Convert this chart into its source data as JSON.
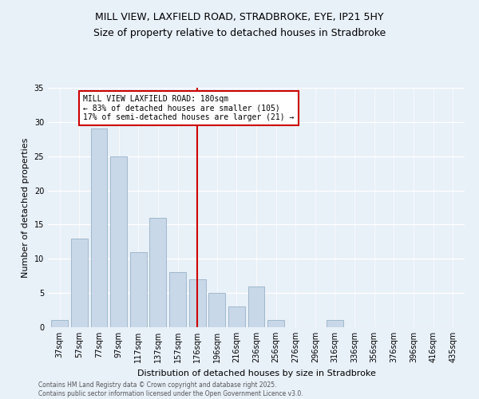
{
  "title1": "MILL VIEW, LAXFIELD ROAD, STRADBROKE, EYE, IP21 5HY",
  "title2": "Size of property relative to detached houses in Stradbroke",
  "xlabel": "Distribution of detached houses by size in Stradbroke",
  "ylabel": "Number of detached properties",
  "footnote": "Contains HM Land Registry data © Crown copyright and database right 2025.\nContains public sector information licensed under the Open Government Licence v3.0.",
  "bar_labels": [
    "37sqm",
    "57sqm",
    "77sqm",
    "97sqm",
    "117sqm",
    "137sqm",
    "157sqm",
    "176sqm",
    "196sqm",
    "216sqm",
    "236sqm",
    "256sqm",
    "276sqm",
    "296sqm",
    "316sqm",
    "336sqm",
    "356sqm",
    "376sqm",
    "396sqm",
    "416sqm",
    "435sqm"
  ],
  "bar_values": [
    1,
    13,
    29,
    25,
    11,
    16,
    8,
    7,
    5,
    3,
    6,
    1,
    0,
    0,
    1,
    0,
    0,
    0,
    0,
    0,
    0
  ],
  "bar_color": "#c8d8e8",
  "bar_edge_color": "#a0b8cc",
  "ref_line_index": 7,
  "reference_line_label": "MILL VIEW LAXFIELD ROAD: 180sqm",
  "annotation_line1": "← 83% of detached houses are smaller (105)",
  "annotation_line2": "17% of semi-detached houses are larger (21) →",
  "annotation_box_color": "#ffffff",
  "annotation_box_edge": "#cc0000",
  "ref_line_color": "#cc0000",
  "ylim": [
    0,
    35
  ],
  "yticks": [
    0,
    5,
    10,
    15,
    20,
    25,
    30,
    35
  ],
  "bg_color": "#e8f0f8",
  "grid_color": "#ffffff",
  "title_fontsize": 9,
  "subtitle_fontsize": 9,
  "axis_label_fontsize": 8,
  "tick_fontsize": 7,
  "annot_fontsize": 7
}
